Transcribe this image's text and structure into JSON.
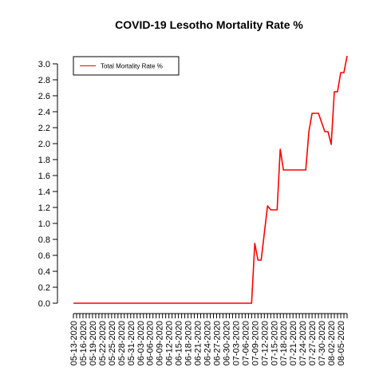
{
  "chart_data": {
    "type": "line",
    "title": "COVID-19 Lesotho Mortality Rate %",
    "xlabel": "",
    "ylabel": "",
    "ylim": [
      0,
      3.1
    ],
    "yticks": [
      0.0,
      0.2,
      0.4,
      0.6,
      0.8,
      1.0,
      1.2,
      1.4,
      1.6,
      1.8,
      2.0,
      2.2,
      2.4,
      2.6,
      2.8,
      3.0
    ],
    "x_tick_labels": [
      "05-13-2020",
      "05-16-2020",
      "05-19-2020",
      "05-22-2020",
      "05-25-2020",
      "05-28-2020",
      "05-31-2020",
      "06-03-2020",
      "06-06-2020",
      "06-09-2020",
      "06-12-2020",
      "06-15-2020",
      "06-18-2020",
      "06-21-2020",
      "06-24-2020",
      "06-27-2020",
      "06-30-2020",
      "07-03-2020",
      "07-06-2020",
      "07-09-2020",
      "07-12-2020",
      "07-15-2020",
      "07-18-2020",
      "07-21-2020",
      "07-24-2020",
      "07-27-2020",
      "07-30-2020",
      "08-02-2020",
      "08-05-2020"
    ],
    "x_start": "05-13-2020",
    "x_end": "08-07-2020",
    "grid": false,
    "legend": {
      "position": "top-left",
      "entries": [
        {
          "label": "Total Mortality Rate %",
          "color": "#ff0000"
        }
      ]
    },
    "series": [
      {
        "name": "Total Mortality Rate %",
        "color": "#ff0000",
        "points": [
          [
            "05-13-2020",
            0.0
          ],
          [
            "07-08-2020",
            0.0
          ],
          [
            "07-09-2020",
            0.75
          ],
          [
            "07-10-2020",
            0.54
          ],
          [
            "07-11-2020",
            0.54
          ],
          [
            "07-13-2020",
            1.22
          ],
          [
            "07-14-2020",
            1.17
          ],
          [
            "07-16-2020",
            1.17
          ],
          [
            "07-17-2020",
            1.93
          ],
          [
            "07-18-2020",
            1.67
          ],
          [
            "07-25-2020",
            1.67
          ],
          [
            "07-26-2020",
            2.15
          ],
          [
            "07-27-2020",
            2.38
          ],
          [
            "07-29-2020",
            2.38
          ],
          [
            "07-31-2020",
            2.15
          ],
          [
            "08-01-2020",
            2.15
          ],
          [
            "08-02-2020",
            1.99
          ],
          [
            "08-03-2020",
            2.65
          ],
          [
            "08-04-2020",
            2.65
          ],
          [
            "08-05-2020",
            2.89
          ],
          [
            "08-06-2020",
            2.89
          ],
          [
            "08-07-2020",
            3.1
          ],
          [
            "08-08-2020",
            3.1
          ]
        ]
      }
    ]
  }
}
